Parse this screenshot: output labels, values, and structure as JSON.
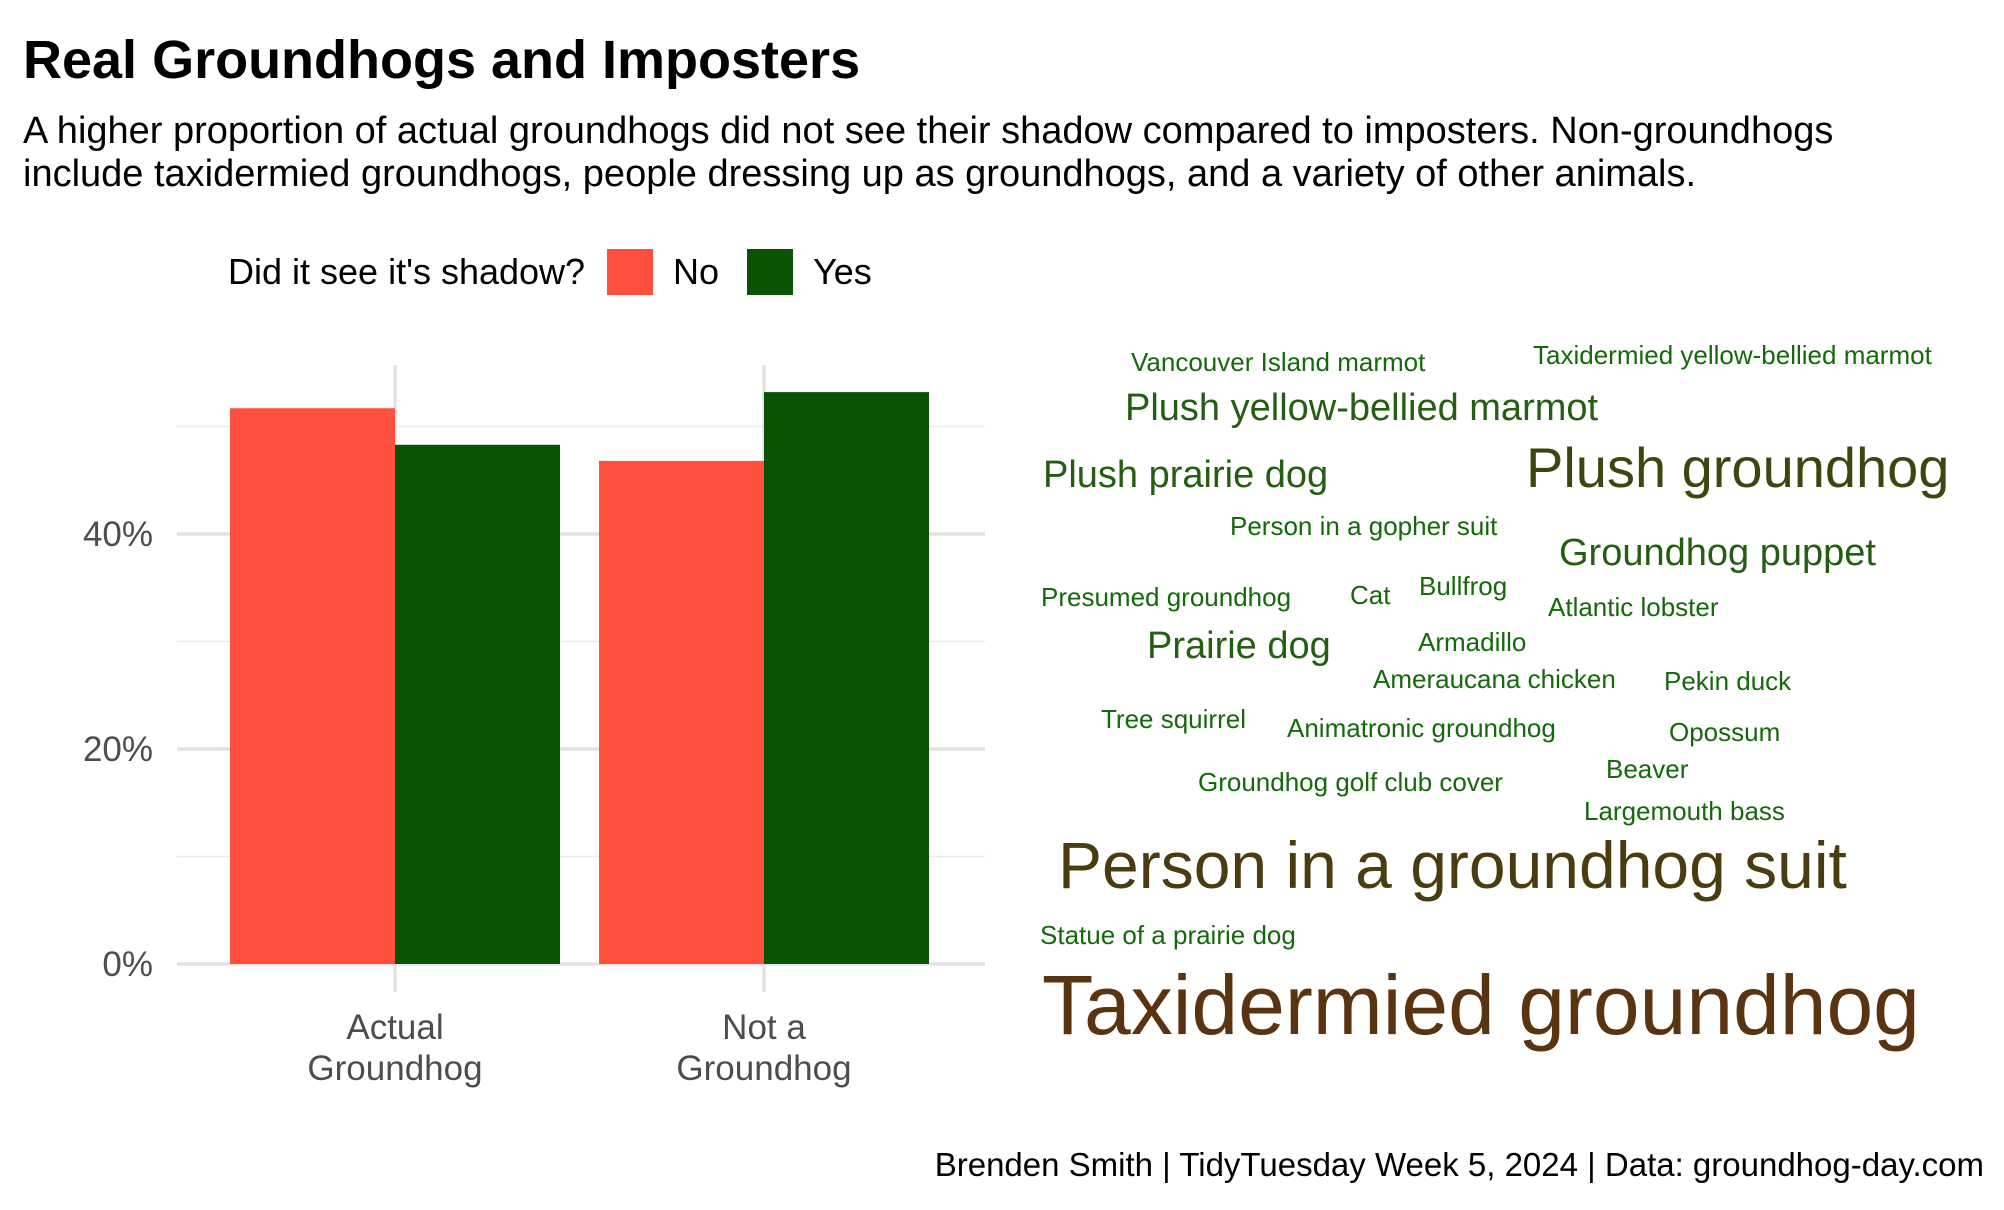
{
  "title": "Real Groundhogs and Imposters",
  "subtitle": [
    "A higher proportion of actual groundhogs did not see their shadow compared to imposters. Non-groundhogs",
    "include taxidermied groundhogs, people dressing up as groundhogs, and a variety of other animals."
  ],
  "caption": "Brenden Smith | TidyTuesday Week 5, 2024 | Data: groundhog-day.com",
  "legend": {
    "title": "Did it see it's shadow?",
    "items": [
      {
        "label": "No",
        "color": "#FF4F3D"
      },
      {
        "label": "Yes",
        "color": "#0B5304"
      }
    ]
  },
  "chart_data": [
    {
      "type": "bar",
      "categories": [
        "Actual\nGroundhog",
        "Not a\nGroundhog"
      ],
      "series": [
        {
          "name": "No",
          "color": "#FF4F3D",
          "values": [
            0.517,
            0.468
          ]
        },
        {
          "name": "Yes",
          "color": "#0B5304",
          "values": [
            0.483,
            0.532
          ]
        }
      ],
      "yticks": [
        0,
        0.2,
        0.4
      ],
      "ytick_labels": [
        "0%",
        "20%",
        "40%"
      ],
      "ylim": [
        0,
        0.55
      ],
      "grid": true,
      "legend_position": "top"
    },
    {
      "type": "wordcloud",
      "words": [
        {
          "text": "Taxidermied groundhog",
          "weight": 10,
          "color": "#5A3311"
        },
        {
          "text": "Person in a groundhog suit",
          "weight": 9,
          "color": "#4A3C0E"
        },
        {
          "text": "Plush groundhog",
          "weight": 6,
          "color": "#3A4810"
        },
        {
          "text": "Groundhog puppet",
          "weight": 4,
          "color": "#245E10"
        },
        {
          "text": "Plush yellow-bellied marmot",
          "weight": 4,
          "color": "#245E10"
        },
        {
          "text": "Plush prairie dog",
          "weight": 4,
          "color": "#245E10"
        },
        {
          "text": "Prairie dog",
          "weight": 4,
          "color": "#245E10"
        },
        {
          "text": "Vancouver Island marmot",
          "weight": 1,
          "color": "#136A09"
        },
        {
          "text": "Taxidermied yellow-bellied marmot",
          "weight": 1,
          "color": "#136A09"
        },
        {
          "text": "Person in a gopher suit",
          "weight": 1,
          "color": "#136A09"
        },
        {
          "text": "Presumed groundhog",
          "weight": 1,
          "color": "#136A09"
        },
        {
          "text": "Cat",
          "weight": 1,
          "color": "#136A09"
        },
        {
          "text": "Bullfrog",
          "weight": 1,
          "color": "#136A09"
        },
        {
          "text": "Atlantic lobster",
          "weight": 1,
          "color": "#136A09"
        },
        {
          "text": "Armadillo",
          "weight": 1,
          "color": "#136A09"
        },
        {
          "text": "Ameraucana chicken",
          "weight": 1,
          "color": "#136A09"
        },
        {
          "text": "Pekin duck",
          "weight": 1,
          "color": "#136A09"
        },
        {
          "text": "Tree squirrel",
          "weight": 1,
          "color": "#136A09"
        },
        {
          "text": "Animatronic groundhog",
          "weight": 1,
          "color": "#136A09"
        },
        {
          "text": "Opossum",
          "weight": 1,
          "color": "#136A09"
        },
        {
          "text": "Beaver",
          "weight": 1,
          "color": "#136A09"
        },
        {
          "text": "Groundhog golf club cover",
          "weight": 1,
          "color": "#136A09"
        },
        {
          "text": "Largemouth bass",
          "weight": 1,
          "color": "#136A09"
        },
        {
          "text": "Statue of a prairie dog",
          "weight": 1,
          "color": "#136A09"
        }
      ]
    }
  ]
}
